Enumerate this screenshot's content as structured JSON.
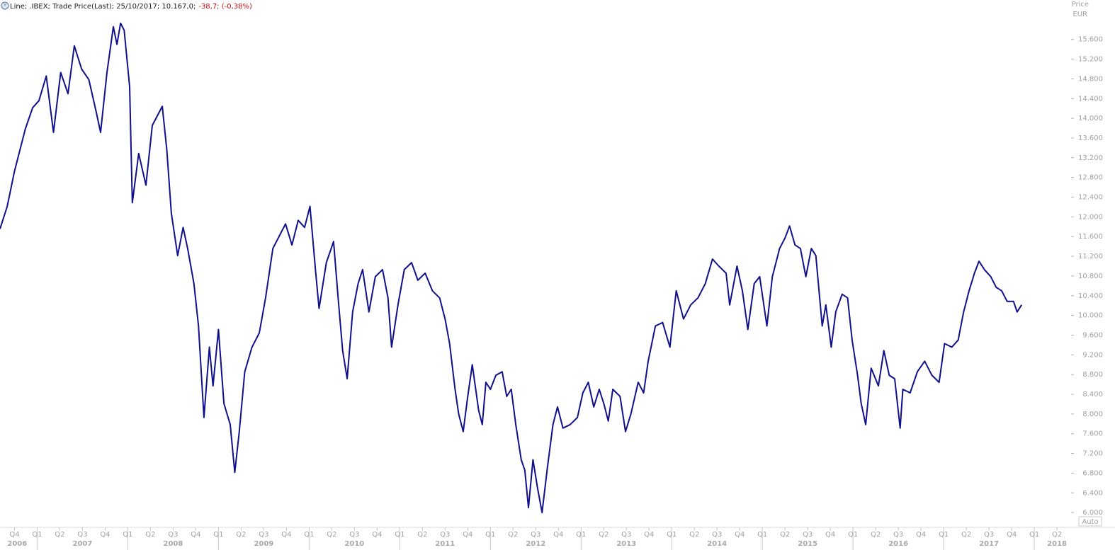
{
  "chart_data": {
    "type": "line",
    "title": "Line; .IBEX; Trade Price(Last); 25/10/2017; 10.167,0;",
    "subtitle": "-38,7; (-0,38%)",
    "y_label": "Price",
    "y_unit": "EUR",
    "scale_button": "Auto",
    "xlim": [
      2006.59,
      2018.39
    ],
    "ylim": [
      5700,
      16400
    ],
    "yticks": [
      {
        "value": 6000,
        "label": "6.000"
      },
      {
        "value": 6400,
        "label": "6.400"
      },
      {
        "value": 6800,
        "label": "6.800"
      },
      {
        "value": 7200,
        "label": "7.200"
      },
      {
        "value": 7600,
        "label": "7.600"
      },
      {
        "value": 8000,
        "label": "8.000"
      },
      {
        "value": 8400,
        "label": "8.400"
      },
      {
        "value": 8800,
        "label": "8.800"
      },
      {
        "value": 9200,
        "label": "9.200"
      },
      {
        "value": 9600,
        "label": "9.600"
      },
      {
        "value": 10000,
        "label": "10.000"
      },
      {
        "value": 10400,
        "label": "10.400"
      },
      {
        "value": 10800,
        "label": "10.800"
      },
      {
        "value": 11200,
        "label": "11.200"
      },
      {
        "value": 11600,
        "label": "11.600"
      },
      {
        "value": 12000,
        "label": "12.000"
      },
      {
        "value": 12400,
        "label": "12.400"
      },
      {
        "value": 12800,
        "label": "12.800"
      },
      {
        "value": 13200,
        "label": "13.200"
      },
      {
        "value": 13600,
        "label": "13.600"
      },
      {
        "value": 14000,
        "label": "14.000"
      },
      {
        "value": 14400,
        "label": "14.400"
      },
      {
        "value": 14800,
        "label": "14.800"
      },
      {
        "value": 15200,
        "label": "15.200"
      },
      {
        "value": 15600,
        "label": "15.600"
      }
    ],
    "xticks": [
      {
        "value": 2006.75,
        "label": "Q4"
      },
      {
        "value": 2007.0,
        "label": "Q1"
      },
      {
        "value": 2007.25,
        "label": "Q2"
      },
      {
        "value": 2007.5,
        "label": "Q3"
      },
      {
        "value": 2007.75,
        "label": "Q4"
      },
      {
        "value": 2008.0,
        "label": "Q1"
      },
      {
        "value": 2008.25,
        "label": "Q2"
      },
      {
        "value": 2008.5,
        "label": "Q3"
      },
      {
        "value": 2008.75,
        "label": "Q4"
      },
      {
        "value": 2009.0,
        "label": "Q1"
      },
      {
        "value": 2009.25,
        "label": "Q2"
      },
      {
        "value": 2009.5,
        "label": "Q3"
      },
      {
        "value": 2009.75,
        "label": "Q4"
      },
      {
        "value": 2010.0,
        "label": "Q1"
      },
      {
        "value": 2010.25,
        "label": "Q2"
      },
      {
        "value": 2010.5,
        "label": "Q3"
      },
      {
        "value": 2010.75,
        "label": "Q4"
      },
      {
        "value": 2011.0,
        "label": "Q1"
      },
      {
        "value": 2011.25,
        "label": "Q2"
      },
      {
        "value": 2011.5,
        "label": "Q3"
      },
      {
        "value": 2011.75,
        "label": "Q4"
      },
      {
        "value": 2012.0,
        "label": "Q1"
      },
      {
        "value": 2012.25,
        "label": "Q2"
      },
      {
        "value": 2012.5,
        "label": "Q3"
      },
      {
        "value": 2012.75,
        "label": "Q4"
      },
      {
        "value": 2013.0,
        "label": "Q1"
      },
      {
        "value": 2013.25,
        "label": "Q2"
      },
      {
        "value": 2013.5,
        "label": "Q3"
      },
      {
        "value": 2013.75,
        "label": "Q4"
      },
      {
        "value": 2014.0,
        "label": "Q1"
      },
      {
        "value": 2014.25,
        "label": "Q2"
      },
      {
        "value": 2014.5,
        "label": "Q3"
      },
      {
        "value": 2014.75,
        "label": "Q4"
      },
      {
        "value": 2015.0,
        "label": "Q1"
      },
      {
        "value": 2015.25,
        "label": "Q2"
      },
      {
        "value": 2015.5,
        "label": "Q3"
      },
      {
        "value": 2015.75,
        "label": "Q4"
      },
      {
        "value": 2016.0,
        "label": "Q1"
      },
      {
        "value": 2016.25,
        "label": "Q2"
      },
      {
        "value": 2016.5,
        "label": "Q3"
      },
      {
        "value": 2016.75,
        "label": "Q4"
      },
      {
        "value": 2017.0,
        "label": "Q1"
      },
      {
        "value": 2017.25,
        "label": "Q2"
      },
      {
        "value": 2017.5,
        "label": "Q3"
      },
      {
        "value": 2017.75,
        "label": "Q4"
      },
      {
        "value": 2018.0,
        "label": "Q1"
      },
      {
        "value": 2018.25,
        "label": "Q2"
      }
    ],
    "year_labels": [
      {
        "value": 2006.78,
        "label": "2006"
      },
      {
        "value": 2007.5,
        "label": "2007"
      },
      {
        "value": 2008.5,
        "label": "2008"
      },
      {
        "value": 2009.5,
        "label": "2009"
      },
      {
        "value": 2010.5,
        "label": "2010"
      },
      {
        "value": 2011.5,
        "label": "2011"
      },
      {
        "value": 2012.5,
        "label": "2012"
      },
      {
        "value": 2013.5,
        "label": "2013"
      },
      {
        "value": 2014.5,
        "label": "2014"
      },
      {
        "value": 2015.5,
        "label": "2015"
      },
      {
        "value": 2016.5,
        "label": "2016"
      },
      {
        "value": 2017.5,
        "label": "2017"
      },
      {
        "value": 2018.25,
        "label": "2018"
      }
    ],
    "x": [
      2006.59,
      2006.67,
      2006.75,
      2006.87,
      2006.95,
      2007.02,
      2007.1,
      2007.18,
      2007.26,
      2007.34,
      2007.41,
      2007.49,
      2007.57,
      2007.65,
      2007.7,
      2007.77,
      2007.84,
      2007.88,
      2007.92,
      2007.96,
      2008.02,
      2008.05,
      2008.12,
      2008.2,
      2008.27,
      2008.38,
      2008.43,
      2008.48,
      2008.55,
      2008.61,
      2008.66,
      2008.73,
      2008.78,
      2008.84,
      2008.9,
      2008.94,
      2009.0,
      2009.06,
      2009.13,
      2009.18,
      2009.23,
      2009.29,
      2009.37,
      2009.45,
      2009.52,
      2009.6,
      2009.68,
      2009.74,
      2009.81,
      2009.88,
      2009.95,
      2010.01,
      2010.07,
      2010.11,
      2010.19,
      2010.27,
      2010.32,
      2010.37,
      2010.42,
      2010.48,
      2010.54,
      2010.59,
      2010.66,
      2010.73,
      2010.81,
      2010.87,
      2010.91,
      2010.98,
      2011.05,
      2011.13,
      2011.2,
      2011.28,
      2011.36,
      2011.44,
      2011.5,
      2011.55,
      2011.61,
      2011.65,
      2011.7,
      2011.75,
      2011.8,
      2011.87,
      2011.91,
      2011.95,
      2012.0,
      2012.06,
      2012.13,
      2012.18,
      2012.23,
      2012.28,
      2012.34,
      2012.38,
      2012.42,
      2012.47,
      2012.52,
      2012.57,
      2012.63,
      2012.69,
      2012.74,
      2012.8,
      2012.88,
      2012.96,
      2013.02,
      2013.08,
      2013.14,
      2013.2,
      2013.25,
      2013.3,
      2013.35,
      2013.43,
      2013.49,
      2013.55,
      2013.63,
      2013.69,
      2013.74,
      2013.82,
      2013.9,
      2013.98,
      2014.05,
      2014.13,
      2014.21,
      2014.29,
      2014.37,
      2014.45,
      2014.52,
      2014.6,
      2014.64,
      2014.72,
      2014.78,
      2014.84,
      2014.91,
      2014.97,
      2015.05,
      2015.11,
      2015.19,
      2015.25,
      2015.3,
      2015.36,
      2015.42,
      2015.48,
      2015.54,
      2015.59,
      2015.66,
      2015.7,
      2015.76,
      2015.81,
      2015.88,
      2015.94,
      2015.99,
      2016.05,
      2016.09,
      2016.14,
      2016.2,
      2016.28,
      2016.34,
      2016.4,
      2016.46,
      2016.52,
      2016.55,
      2016.63,
      2016.71,
      2016.79,
      2016.87,
      2016.95,
      2017.01,
      2017.09,
      2017.16,
      2017.22,
      2017.28,
      2017.34,
      2017.39,
      2017.45,
      2017.52,
      2017.58,
      2017.64,
      2017.7,
      2017.77,
      2017.81,
      2017.86
    ],
    "series": [
      {
        "color": "#10108c",
        "values": [
          11757,
          12214,
          12929,
          13786,
          14214,
          14357,
          14857,
          13714,
          14929,
          14500,
          15471,
          15000,
          14786,
          14143,
          13714,
          14929,
          15857,
          15500,
          15929,
          15786,
          14643,
          12286,
          13286,
          12643,
          13857,
          14243,
          13357,
          12071,
          11214,
          11786,
          11357,
          10643,
          9786,
          7929,
          9357,
          8571,
          9714,
          8214,
          7786,
          6814,
          7643,
          8857,
          9357,
          9643,
          10357,
          11357,
          11643,
          11857,
          11429,
          11929,
          11786,
          12214,
          10929,
          10143,
          11071,
          11500,
          10357,
          9286,
          8714,
          10071,
          10643,
          10929,
          10071,
          10786,
          10929,
          10357,
          9357,
          10214,
          10929,
          11071,
          10714,
          10857,
          10500,
          10357,
          9929,
          9429,
          8500,
          8000,
          7643,
          8357,
          9000,
          8071,
          7786,
          8643,
          8500,
          8786,
          8857,
          8357,
          8500,
          7786,
          7071,
          6857,
          6100,
          7071,
          6500,
          6000,
          6929,
          7786,
          8143,
          7714,
          7786,
          7929,
          8429,
          8643,
          8143,
          8500,
          8214,
          7857,
          8500,
          8357,
          7643,
          8000,
          8643,
          8429,
          9071,
          9786,
          9857,
          9357,
          10500,
          9929,
          10214,
          10357,
          10643,
          11143,
          11000,
          10857,
          10214,
          11000,
          10500,
          9714,
          10643,
          10786,
          9786,
          10786,
          11357,
          11571,
          11814,
          11429,
          11357,
          10786,
          11357,
          11214,
          9786,
          10214,
          9357,
          10071,
          10429,
          10357,
          9500,
          8786,
          8214,
          7786,
          8929,
          8571,
          9286,
          8786,
          8714,
          7714,
          8500,
          8429,
          8857,
          9071,
          8786,
          8643,
          9429,
          9357,
          9500,
          10071,
          10500,
          10857,
          11100,
          10929,
          10786,
          10571,
          10500,
          10286,
          10286,
          10071,
          10214
        ]
      }
    ]
  }
}
